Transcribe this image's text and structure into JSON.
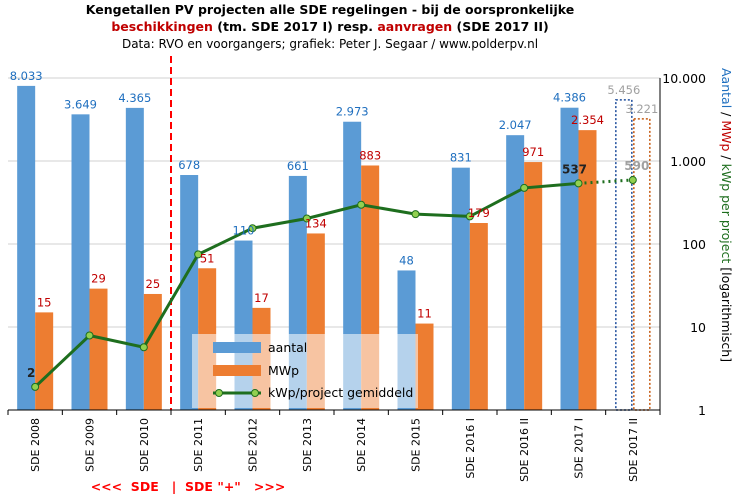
{
  "title": {
    "line1": "Kengetallen PV projecten alle SDE regelingen - bij de oorspronkelijke",
    "line2_a": "beschikkingen",
    "line2_b": " (tm. SDE 2017 I) resp. ",
    "line2_c": "aanvragen",
    "line2_d": " (SDE 2017 II)",
    "line3": "Data: RVO en voorgangers; grafiek: Peter J. Segaar / www.polderpv.nl"
  },
  "colors": {
    "aantal": "#5b9bd5",
    "mwp": "#ed7d31",
    "kwp": "#1e6e1e",
    "kwp_marker": "#92d050",
    "aantal_label": "#1f6fbf",
    "mwp_label": "#c00000",
    "divider": "#ff0000",
    "grid": "#d0d0d0",
    "title_red": "#c00000"
  },
  "bottom_note": "<<<  SDE   |  SDE \"+\"   >>>",
  "y_axis_title": {
    "part1": "Aantal",
    "sep1": " / ",
    "part2": "MWp",
    "sep2": " / ",
    "part3": "kWp per project",
    "part4": " [logarithmisch]"
  },
  "chart_data": {
    "type": "bar",
    "scale": "log",
    "ylim": [
      1,
      10000
    ],
    "yticks": [
      1,
      10,
      100,
      1000,
      10000
    ],
    "ytick_labels": [
      "1",
      "10",
      "100",
      "1.000",
      "10.000"
    ],
    "categories": [
      "SDE 2008",
      "SDE 2009",
      "SDE 2010",
      "SDE 2011",
      "SDE 2012",
      "SDE 2013",
      "SDE 2014",
      "SDE 2015",
      "SDE 2016 I",
      "SDE 2016 II",
      "SDE 2017 I",
      "SDE 2017 II"
    ],
    "series": [
      {
        "name": "aantal",
        "kind": "bar",
        "values": [
          8033,
          3649,
          4365,
          678,
          110,
          661,
          2973,
          48,
          831,
          2047,
          4386,
          5456
        ],
        "labels": [
          "8.033",
          "3.649",
          "4.365",
          "678",
          "110",
          "661",
          "2.973",
          "48",
          "831",
          "2.047",
          "4.386",
          "5.456"
        ]
      },
      {
        "name": "MWp",
        "kind": "bar",
        "values": [
          15,
          29,
          25,
          51,
          17,
          134,
          883,
          11,
          179,
          971,
          2354,
          3221
        ],
        "labels": [
          "15",
          "29",
          "25",
          "51",
          "17",
          "134",
          "883",
          "11",
          "179",
          "971",
          "2.354",
          "3.221"
        ]
      },
      {
        "name": "kWp/project gemiddeld",
        "kind": "line",
        "values": [
          1.9,
          7.9,
          5.7,
          75,
          155,
          203,
          297,
          229,
          215,
          474,
          537,
          590
        ],
        "labels": [
          "2",
          "",
          "",
          "",
          "",
          "",
          "",
          "",
          "",
          "",
          "537",
          "590"
        ]
      }
    ],
    "legend": {
      "position": "bottom-center",
      "items": [
        "aantal",
        "MWp",
        "kWp/project gemiddeld"
      ]
    },
    "divider_after_category": "SDE 2010",
    "dotted_last_category": "SDE 2017 II"
  }
}
